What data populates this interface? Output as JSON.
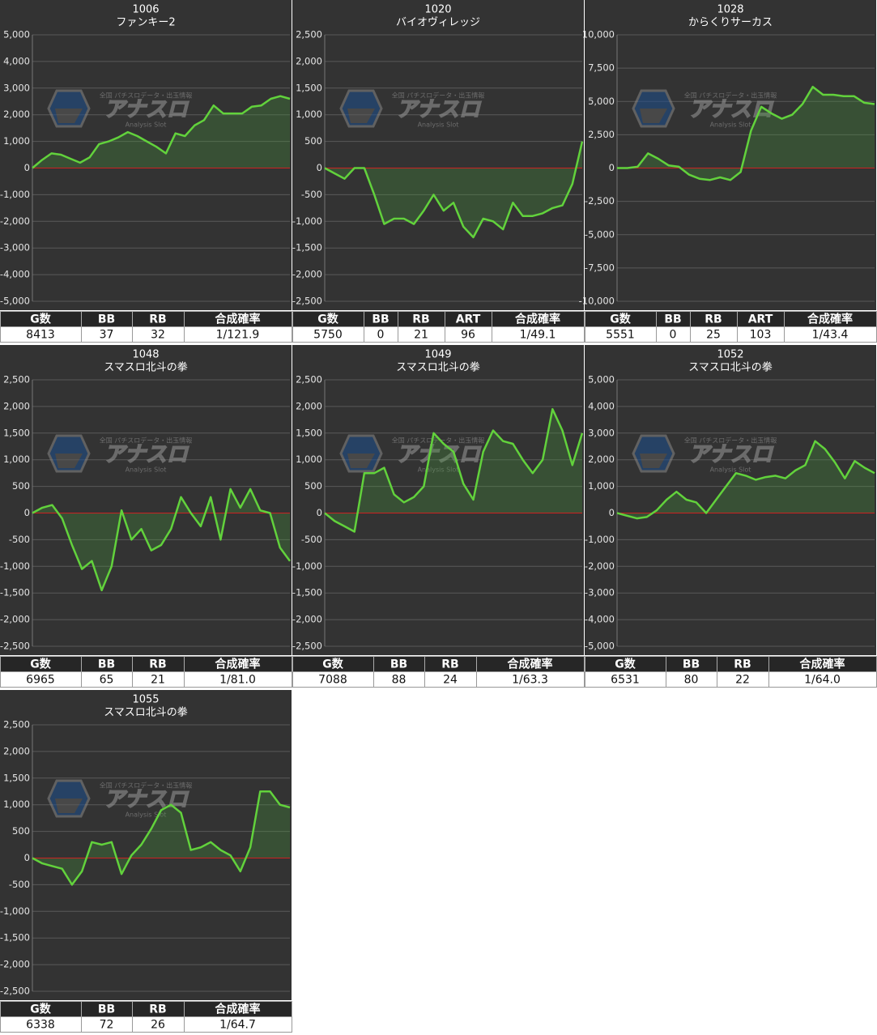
{
  "watermark": {
    "caption": "全国 パチスロデータ・出玉情報",
    "logo": "アナスロ",
    "tagline": "Analysis Slot"
  },
  "chart_data": [
    {
      "type": "line",
      "title": "1006",
      "subtitle": "ファンキー2",
      "color": "#62d23c",
      "grid": true,
      "values": [
        0,
        300,
        550,
        500,
        350,
        200,
        400,
        900,
        1000,
        1150,
        1350,
        1200,
        1000,
        800,
        550,
        1300,
        1200,
        1600,
        1800,
        2350,
        2050,
        2050,
        2050,
        2300,
        2350,
        2600,
        2700,
        2600
      ],
      "ylim": [
        -5000,
        5000
      ],
      "yticks": [
        {
          "value": -5000,
          "label": "-5,000"
        },
        {
          "value": -4000,
          "label": "-4,000"
        },
        {
          "value": -3000,
          "label": "-3,000"
        },
        {
          "value": -2000,
          "label": "-2,000"
        },
        {
          "value": -1000,
          "label": "-1,000"
        },
        0,
        {
          "value": 1000,
          "label": "1,000"
        },
        {
          "value": 2000,
          "label": "2,000"
        },
        {
          "value": 3000,
          "label": "3,000"
        },
        {
          "value": 4000,
          "label": "4,000"
        },
        {
          "value": 5000,
          "label": "5,000"
        }
      ],
      "table": {
        "headers": [
          "G数",
          "BB",
          "RB",
          "合成確率"
        ],
        "rows": [
          [
            8413,
            37,
            32,
            "1/121.9"
          ]
        ]
      }
    },
    {
      "type": "line",
      "title": "1020",
      "subtitle": "バイオヴィレッジ",
      "color": "#62d23c",
      "grid": true,
      "values": [
        0,
        -100,
        -200,
        0,
        0,
        -500,
        -1050,
        -950,
        -950,
        -1050,
        -800,
        -500,
        -800,
        -650,
        -1100,
        -1300,
        -950,
        -1000,
        -1150,
        -650,
        -900,
        -900,
        -850,
        -750,
        -700,
        -300,
        500
      ],
      "ylim": [
        -2500,
        2500
      ],
      "yticks": [
        {
          "value": -2500,
          "label": "-2,500"
        },
        {
          "value": -2000,
          "label": "-2,000"
        },
        {
          "value": -1500,
          "label": "-1,500"
        },
        {
          "value": -1000,
          "label": "-1,000"
        },
        -500,
        0,
        500,
        {
          "value": 1000,
          "label": "1,000"
        },
        {
          "value": 1500,
          "label": "1,500"
        },
        {
          "value": 2000,
          "label": "2,000"
        },
        {
          "value": 2500,
          "label": "2,500"
        }
      ],
      "table": {
        "headers": [
          "G数",
          "BB",
          "RB",
          "ART",
          "合成確率"
        ],
        "rows": [
          [
            5750,
            0,
            21,
            96,
            "1/49.1"
          ]
        ]
      }
    },
    {
      "type": "line",
      "title": "1028",
      "subtitle": "からくりサーカス",
      "color": "#62d23c",
      "grid": true,
      "values": [
        0,
        0,
        100,
        1100,
        700,
        200,
        100,
        -500,
        -800,
        -900,
        -700,
        -900,
        -300,
        2800,
        4600,
        4100,
        3700,
        4000,
        4800,
        6100,
        5500,
        5500,
        5400,
        5400,
        4900,
        4800
      ],
      "ylim": [
        -10000,
        10000
      ],
      "yticks": [
        {
          "value": -10000,
          "label": "-10,000"
        },
        {
          "value": -7500,
          "label": "-7,500"
        },
        {
          "value": -5000,
          "label": "-5,000"
        },
        {
          "value": -2500,
          "label": "-2,500"
        },
        0,
        {
          "value": 2500,
          "label": "2,500"
        },
        {
          "value": 5000,
          "label": "5,000"
        },
        {
          "value": 7500,
          "label": "7,500"
        },
        {
          "value": 10000,
          "label": "10,000"
        }
      ],
      "table": {
        "headers": [
          "G数",
          "BB",
          "RB",
          "ART",
          "合成確率"
        ],
        "rows": [
          [
            5551,
            0,
            25,
            103,
            "1/43.4"
          ]
        ]
      }
    },
    {
      "type": "line",
      "title": "1048",
      "subtitle": "スマスロ北斗の拳",
      "color": "#62d23c",
      "grid": true,
      "values": [
        0,
        100,
        150,
        -100,
        -600,
        -1050,
        -900,
        -1450,
        -1000,
        50,
        -500,
        -300,
        -700,
        -600,
        -300,
        300,
        0,
        -250,
        300,
        -500,
        450,
        100,
        450,
        50,
        0,
        -650,
        -900
      ],
      "ylim": [
        -2500,
        2500
      ],
      "yticks": [
        {
          "value": -2500,
          "label": "-2,500"
        },
        {
          "value": -2000,
          "label": "-2,000"
        },
        {
          "value": -1500,
          "label": "-1,500"
        },
        {
          "value": -1000,
          "label": "-1,000"
        },
        -500,
        0,
        500,
        {
          "value": 1000,
          "label": "1,000"
        },
        {
          "value": 1500,
          "label": "1,500"
        },
        {
          "value": 2000,
          "label": "2,000"
        },
        {
          "value": 2500,
          "label": "2,500"
        }
      ],
      "table": {
        "headers": [
          "G数",
          "BB",
          "RB",
          "合成確率"
        ],
        "rows": [
          [
            6965,
            65,
            21,
            "1/81.0"
          ]
        ]
      }
    },
    {
      "type": "line",
      "title": "1049",
      "subtitle": "スマスロ北斗の拳",
      "color": "#62d23c",
      "grid": true,
      "values": [
        0,
        -150,
        -250,
        -350,
        750,
        750,
        850,
        350,
        200,
        300,
        500,
        1500,
        1300,
        1150,
        550,
        250,
        1150,
        1550,
        1350,
        1300,
        1000,
        750,
        1000,
        1950,
        1550,
        900,
        1500
      ],
      "ylim": [
        -2500,
        2500
      ],
      "yticks": [
        {
          "value": -2500,
          "label": "-2,500"
        },
        {
          "value": -2000,
          "label": "-2,000"
        },
        {
          "value": -1500,
          "label": "-1,500"
        },
        {
          "value": -1000,
          "label": "-1,000"
        },
        -500,
        0,
        500,
        {
          "value": 1000,
          "label": "1,000"
        },
        {
          "value": 1500,
          "label": "1,500"
        },
        {
          "value": 2000,
          "label": "2,000"
        },
        {
          "value": 2500,
          "label": "2,500"
        }
      ],
      "table": {
        "headers": [
          "G数",
          "BB",
          "RB",
          "合成確率"
        ],
        "rows": [
          [
            7088,
            88,
            24,
            "1/63.3"
          ]
        ]
      }
    },
    {
      "type": "line",
      "title": "1052",
      "subtitle": "スマスロ北斗の拳",
      "color": "#62d23c",
      "grid": true,
      "values": [
        0,
        -100,
        -200,
        -150,
        100,
        500,
        800,
        500,
        400,
        0,
        500,
        1000,
        1500,
        1400,
        1250,
        1350,
        1400,
        1300,
        1600,
        1800,
        2700,
        2400,
        1900,
        1300,
        1950,
        1700,
        1500
      ],
      "ylim": [
        -5000,
        5000
      ],
      "yticks": [
        {
          "value": -5000,
          "label": "-5,000"
        },
        {
          "value": -4000,
          "label": "-4,000"
        },
        {
          "value": -3000,
          "label": "-3,000"
        },
        {
          "value": -2000,
          "label": "-2,000"
        },
        {
          "value": -1000,
          "label": "-1,000"
        },
        0,
        {
          "value": 1000,
          "label": "1,000"
        },
        {
          "value": 2000,
          "label": "2,000"
        },
        {
          "value": 3000,
          "label": "3,000"
        },
        {
          "value": 4000,
          "label": "4,000"
        },
        {
          "value": 5000,
          "label": "5,000"
        }
      ],
      "table": {
        "headers": [
          "G数",
          "BB",
          "RB",
          "合成確率"
        ],
        "rows": [
          [
            6531,
            80,
            22,
            "1/64.0"
          ]
        ]
      }
    },
    {
      "type": "line",
      "title": "1055",
      "subtitle": "スマスロ北斗の拳",
      "color": "#62d23c",
      "grid": true,
      "values": [
        0,
        -100,
        -150,
        -200,
        -500,
        -250,
        300,
        250,
        300,
        -300,
        50,
        250,
        550,
        900,
        1000,
        850,
        150,
        200,
        300,
        150,
        50,
        -250,
        200,
        1250,
        1250,
        1000,
        950
      ],
      "ylim": [
        -2500,
        2500
      ],
      "yticks": [
        {
          "value": -2500,
          "label": "-2,500"
        },
        {
          "value": -2000,
          "label": "-2,000"
        },
        {
          "value": -1500,
          "label": "-1,500"
        },
        {
          "value": -1000,
          "label": "-1,000"
        },
        -500,
        0,
        500,
        {
          "value": 1000,
          "label": "1,000"
        },
        {
          "value": 1500,
          "label": "1,500"
        },
        {
          "value": 2000,
          "label": "2,000"
        },
        {
          "value": 2500,
          "label": "2,500"
        }
      ],
      "table": {
        "headers": [
          "G数",
          "BB",
          "RB",
          "合成確率"
        ],
        "rows": [
          [
            6338,
            72,
            26,
            "1/64.7"
          ]
        ]
      }
    }
  ]
}
